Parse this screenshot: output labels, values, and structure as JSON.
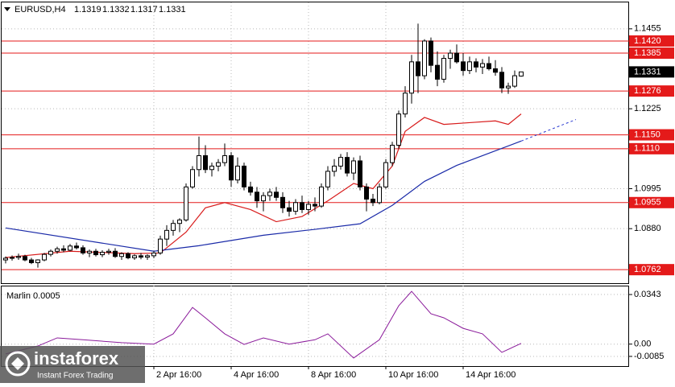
{
  "chart_data": [
    {
      "type": "candlestick",
      "title": "EURUSD,H4",
      "categories": [
        null,
        null,
        null,
        null,
        null,
        null,
        null,
        null,
        null,
        null,
        null,
        null,
        null,
        null,
        null,
        null,
        null,
        null,
        null,
        null,
        null,
        null,
        null,
        "2 Apr 16:00",
        null,
        null,
        null,
        null,
        null,
        null,
        null,
        null,
        null,
        null,
        null,
        "4 Apr 16:00",
        null,
        null,
        null,
        null,
        null,
        null,
        null,
        null,
        null,
        null,
        null,
        "8 Apr 16:00",
        null,
        null,
        null,
        null,
        null,
        null,
        null,
        null,
        null,
        null,
        null,
        "10 Apr 16:00",
        null,
        null,
        null,
        null,
        null,
        null,
        null,
        null,
        null,
        null,
        null,
        "14 Apr 16:00",
        null,
        null,
        null,
        null,
        null,
        null,
        null,
        null,
        null
      ],
      "open": [
        1.079,
        1.0795,
        1.0797,
        1.08,
        1.079,
        1.0782,
        1.079,
        1.0806,
        1.0815,
        1.0822,
        1.0818,
        1.083,
        1.0825,
        1.081,
        1.0815,
        1.0805,
        1.0812,
        1.0815,
        1.08,
        1.0808,
        1.0796,
        1.0802,
        1.0798,
        1.0802,
        1.081,
        1.085,
        1.0875,
        1.0895,
        1.0905,
        1.1,
        1.105,
        1.109,
        1.105,
        1.106,
        1.107,
        1.109,
        1.102,
        1.106,
        1.1,
        1.0985,
        1.096,
        1.0975,
        1.0985,
        1.097,
        1.094,
        1.093,
        1.0955,
        1.0935,
        1.095,
        1.0945,
        1.1,
        1.1045,
        1.106,
        1.1085,
        1.104,
        1.1075,
        1.1,
        1.0965,
        1.0955,
        1.1,
        1.107,
        1.112,
        1.121,
        1.127,
        1.136,
        1.132,
        1.142,
        1.135,
        1.131,
        1.137,
        1.1385,
        1.136,
        1.1335,
        1.136,
        1.1345,
        1.1355,
        1.134,
        1.133,
        1.1285,
        1.129,
        1.1319
      ],
      "high": [
        1.08,
        1.0803,
        1.0808,
        1.0805,
        1.0796,
        1.0792,
        1.081,
        1.082,
        1.0828,
        1.0832,
        1.0836,
        1.084,
        1.0832,
        1.082,
        1.0822,
        1.0818,
        1.0822,
        1.0824,
        1.0812,
        1.0812,
        1.0806,
        1.081,
        1.0806,
        1.0815,
        1.086,
        1.089,
        1.0905,
        1.091,
        1.101,
        1.106,
        1.1145,
        1.112,
        1.107,
        1.108,
        1.1125,
        1.11,
        1.1085,
        1.107,
        1.1015,
        1.1,
        1.0985,
        1.0995,
        1.1,
        1.0985,
        1.096,
        1.0965,
        1.0975,
        1.096,
        1.097,
        1.101,
        1.106,
        1.108,
        1.1095,
        1.11,
        1.1085,
        1.109,
        1.101,
        1.098,
        1.101,
        1.108,
        1.113,
        1.122,
        1.129,
        1.138,
        1.147,
        1.1425,
        1.143,
        1.139,
        1.138,
        1.1395,
        1.141,
        1.1385,
        1.1375,
        1.137,
        1.1368,
        1.1375,
        1.1365,
        1.1345,
        1.13,
        1.1335,
        1.1332
      ],
      "low": [
        1.078,
        1.0788,
        1.079,
        1.0786,
        1.0778,
        1.0768,
        1.0786,
        1.08,
        1.0808,
        1.0812,
        1.0815,
        1.082,
        1.0805,
        1.0798,
        1.08,
        1.0798,
        1.0805,
        1.0796,
        1.079,
        1.0792,
        1.079,
        1.0792,
        1.079,
        1.0795,
        1.0805,
        1.083,
        1.086,
        1.087,
        1.09,
        1.0995,
        1.103,
        1.104,
        1.103,
        1.1045,
        1.106,
        1.1,
        1.101,
        1.099,
        1.0975,
        1.094,
        1.093,
        1.096,
        1.096,
        1.0925,
        1.0915,
        1.092,
        1.0925,
        1.092,
        1.093,
        1.094,
        1.099,
        1.103,
        1.105,
        1.103,
        1.102,
        1.099,
        1.093,
        1.0945,
        1.095,
        1.0995,
        1.106,
        1.111,
        1.12,
        1.124,
        1.127,
        1.131,
        1.133,
        1.129,
        1.13,
        1.134,
        1.1355,
        1.132,
        1.1325,
        1.133,
        1.1325,
        1.1335,
        1.132,
        1.127,
        1.1268,
        1.1285,
        1.1317
      ],
      "close": [
        1.0795,
        1.0797,
        1.08,
        1.079,
        1.0782,
        1.079,
        1.0806,
        1.0815,
        1.0822,
        1.0818,
        1.083,
        1.0825,
        1.081,
        1.0815,
        1.0805,
        1.0812,
        1.0815,
        1.08,
        1.0808,
        1.0796,
        1.0802,
        1.0798,
        1.0802,
        1.081,
        1.085,
        1.0875,
        1.0895,
        1.0905,
        1.1,
        1.105,
        1.109,
        1.105,
        1.106,
        1.107,
        1.109,
        1.102,
        1.106,
        1.1,
        1.0985,
        1.096,
        1.0975,
        1.0985,
        1.097,
        1.094,
        1.093,
        1.0955,
        1.0935,
        1.095,
        1.0945,
        1.1,
        1.1045,
        1.106,
        1.1085,
        1.104,
        1.1075,
        1.1,
        1.0965,
        1.0955,
        1.1,
        1.107,
        1.112,
        1.121,
        1.127,
        1.136,
        1.132,
        1.142,
        1.135,
        1.131,
        1.137,
        1.1385,
        1.136,
        1.1335,
        1.136,
        1.1345,
        1.1355,
        1.134,
        1.133,
        1.1285,
        1.129,
        1.132,
        1.1331
      ],
      "up_color": "#ffffff",
      "down_color": "#000000",
      "ylim": [
        1.0723,
        1.1531
      ],
      "yticks": [
        1.1455,
        1.1225,
        1.0995,
        {
          "value": 1.088,
          "label": "1.0880"
        }
      ],
      "levels": [
        1.142,
        1.1385,
        1.1276,
        1.115,
        1.111,
        1.0955,
        1.0762
      ],
      "level_labels": [
        "1.1420",
        "1.1385",
        "1.1276",
        "1.1150",
        "1.1110",
        "1.0955",
        "1.0762"
      ],
      "level_color": "#e41a1a",
      "lines": [
        {
          "color": "#d81b1b",
          "x": [
            0,
            10,
            20,
            24,
            28,
            31,
            34,
            38,
            42,
            46,
            50,
            54,
            57,
            60,
            62,
            65,
            68,
            72,
            76,
            78,
            80
          ],
          "values": [
            1.0797,
            1.0815,
            1.0808,
            1.081,
            1.087,
            1.094,
            1.0955,
            1.0935,
            1.09,
            1.0915,
            1.096,
            1.101,
            1.0995,
            1.106,
            1.116,
            1.12,
            1.118,
            1.1185,
            1.119,
            1.118,
            1.121
          ]
        },
        {
          "color": "#1a2aa8",
          "x": [
            0,
            23,
            30,
            40,
            48,
            55,
            60,
            65,
            70,
            75,
            80
          ],
          "values": [
            1.0882,
            1.0815,
            1.0831,
            1.0861,
            1.0878,
            1.0894,
            1.0947,
            1.1016,
            1.1062,
            1.1097,
            1.1132
          ]
        }
      ],
      "projection": {
        "color": "#2a3ad0",
        "x": [
          80,
          88.5
        ],
        "values": [
          1.1132,
          1.1194
        ]
      },
      "grid": true
    },
    {
      "type": "line",
      "title": "Marlin 0.0005",
      "series": [
        {
          "color": "#8a1a9a",
          "x": [
            0,
            5,
            8,
            12,
            18,
            23,
            26,
            29,
            31,
            34,
            37,
            40,
            44,
            48,
            50,
            54,
            58,
            61,
            63,
            66,
            68,
            71,
            74,
            77,
            80
          ],
          "values": [
            -0.0068,
            -0.0013,
            0.0043,
            0.003,
            0.001,
            0,
            0.0071,
            0.0254,
            0.0182,
            0.0071,
            -0.0002,
            0.0043,
            0,
            0.003,
            0.0071,
            -0.0096,
            0.003,
            0.0265,
            0.0365,
            0.021,
            0.0182,
            0.0109,
            0.0071,
            -0.0057,
            0.0005
          ]
        }
      ],
      "ylim": [
        -0.0152,
        0.0399
      ],
      "yticks": [
        0.0343,
        {
          "value": 0,
          "label": "0.00"
        },
        -0.0085
      ],
      "grid": true
    }
  ],
  "watermark": {
    "brand": "instaforex",
    "tagline": "Instant Forex Trading"
  }
}
